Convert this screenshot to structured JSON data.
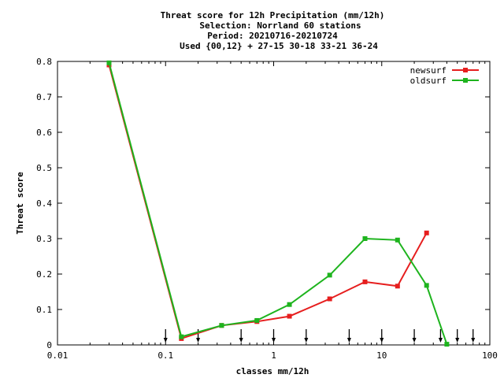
{
  "chart_data": {
    "type": "line",
    "title_lines": [
      "Threat score  for 12h Precipitation (mm/12h)",
      "Selection: Norrland     60 stations",
      "Period: 20210716-20210724",
      "Used {00,12} + 27-15 30-18 33-21 36-24"
    ],
    "xlabel": "classes mm/12h",
    "ylabel": "Threat score",
    "x_scale": "log",
    "xlim": [
      0.01,
      100
    ],
    "ylim": [
      0,
      0.8
    ],
    "x_ticks": [
      {
        "value": 0.01,
        "label": "0.01"
      },
      {
        "value": 0.1,
        "label": "0.1"
      },
      {
        "value": 1,
        "label": "1"
      },
      {
        "value": 10,
        "label": "10"
      },
      {
        "value": 100,
        "label": "100"
      }
    ],
    "y_ticks": [
      {
        "value": 0,
        "label": "0"
      },
      {
        "value": 0.1,
        "label": "0.1"
      },
      {
        "value": 0.2,
        "label": "0.2"
      },
      {
        "value": 0.3,
        "label": "0.3"
      },
      {
        "value": 0.4,
        "label": "0.4"
      },
      {
        "value": 0.5,
        "label": "0.5"
      },
      {
        "value": 0.6,
        "label": "0.6"
      },
      {
        "value": 0.7,
        "label": "0.7"
      },
      {
        "value": 0.8,
        "label": "0.8"
      }
    ],
    "class_arrows": [
      0.1,
      0.2,
      0.5,
      1,
      2,
      5,
      10,
      20,
      35,
      50,
      70
    ],
    "grid": false,
    "legend_position": "top-right",
    "series": [
      {
        "name": "newsurf",
        "color": "#e61e1e",
        "points": [
          {
            "x": 0.03,
            "y": 0.79
          },
          {
            "x": 0.14,
            "y": 0.018
          },
          {
            "x": 0.33,
            "y": 0.055
          },
          {
            "x": 0.7,
            "y": 0.066
          },
          {
            "x": 1.4,
            "y": 0.081
          },
          {
            "x": 3.3,
            "y": 0.13
          },
          {
            "x": 7,
            "y": 0.178
          },
          {
            "x": 14,
            "y": 0.166
          },
          {
            "x": 26,
            "y": 0.316
          }
        ]
      },
      {
        "name": "oldsurf",
        "color": "#1eb41e",
        "points": [
          {
            "x": 0.03,
            "y": 0.796
          },
          {
            "x": 0.14,
            "y": 0.023
          },
          {
            "x": 0.33,
            "y": 0.055
          },
          {
            "x": 0.7,
            "y": 0.069
          },
          {
            "x": 1.4,
            "y": 0.114
          },
          {
            "x": 3.3,
            "y": 0.197
          },
          {
            "x": 7,
            "y": 0.3
          },
          {
            "x": 14,
            "y": 0.296
          },
          {
            "x": 26,
            "y": 0.168
          },
          {
            "x": 40,
            "y": 0.002
          }
        ]
      }
    ]
  }
}
